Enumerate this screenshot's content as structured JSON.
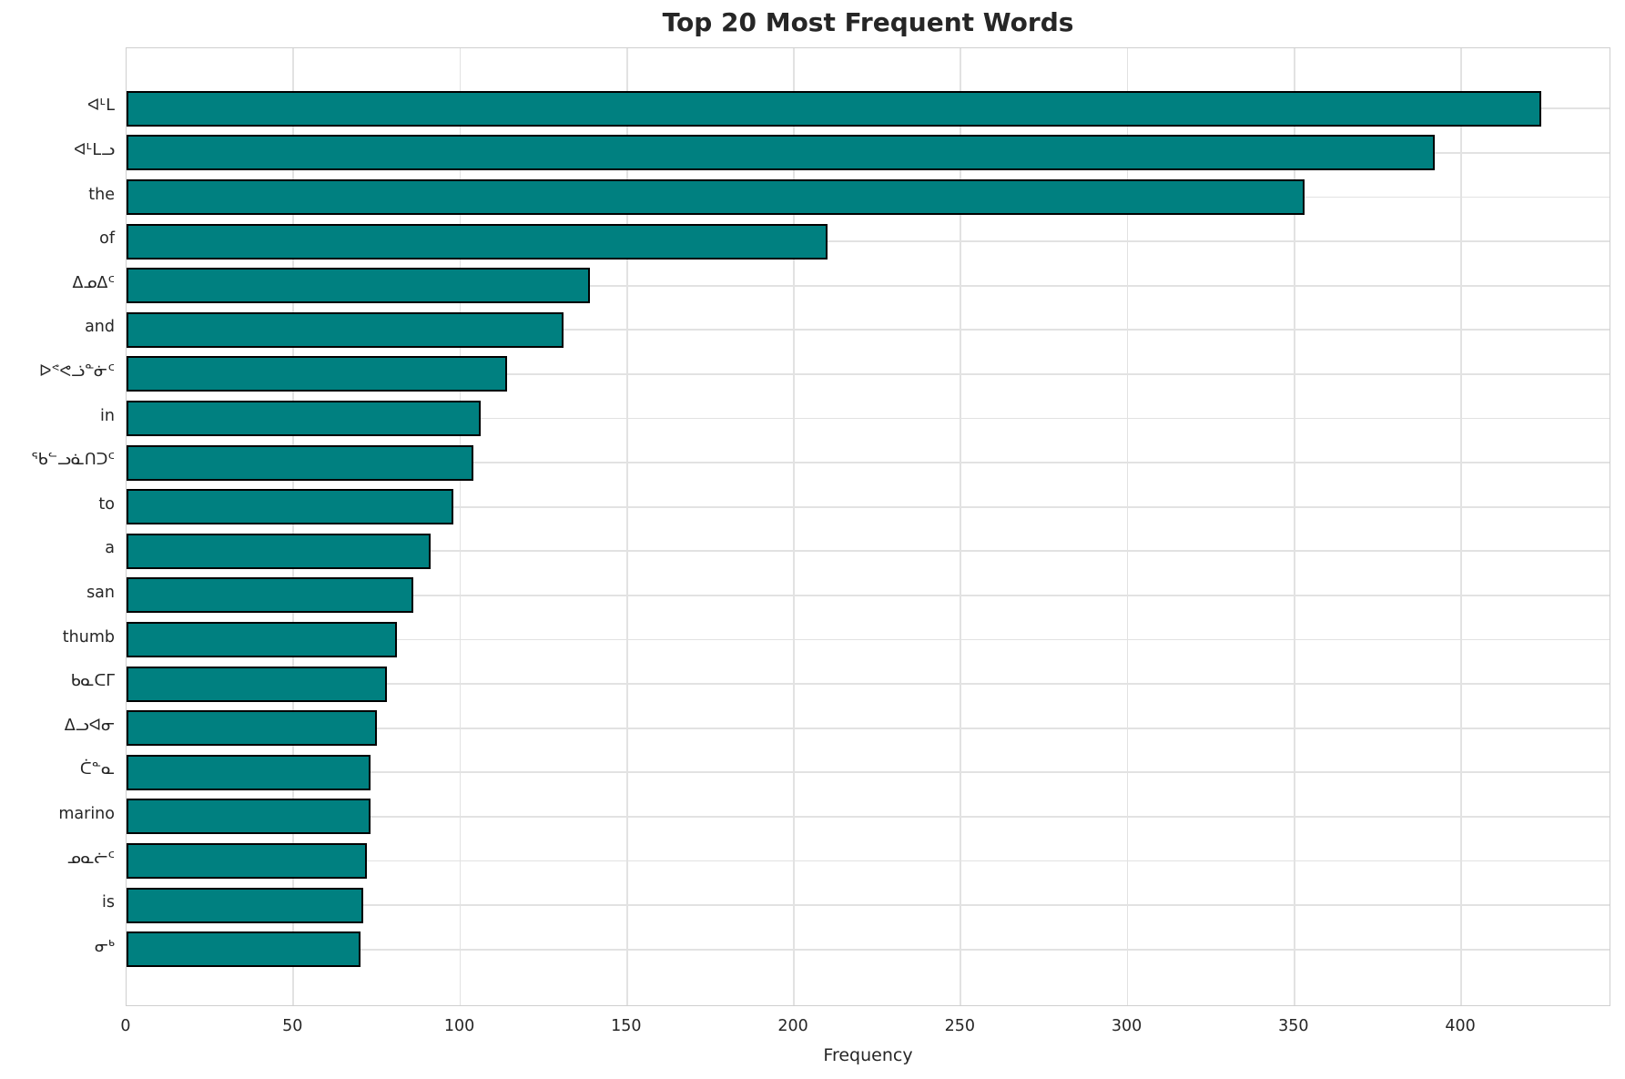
{
  "title": "Top 20 Most Frequent Words",
  "xlabel": "Frequency",
  "colors": {
    "bar_fill": "#008080",
    "bar_edge": "#000000",
    "grid": "#e2e2e2",
    "spine": "#cfcfcf",
    "text": "#262626"
  },
  "chart_data": {
    "type": "bar",
    "orientation": "horizontal",
    "title": "Top 20 Most Frequent Words",
    "xlabel": "Frequency",
    "ylabel": "",
    "grid": true,
    "legend": false,
    "xlim": [
      0,
      445
    ],
    "xticks": [
      0,
      50,
      100,
      150,
      200,
      250,
      300,
      350,
      400
    ],
    "categories": [
      "ᐊᒻᒪ",
      "ᐊᒻᒪᓗ",
      "the",
      "of",
      "ᐃᓄᐃᑦ",
      "and",
      "ᐅᕝᕙᓘᓐᓃᑦ",
      "in",
      "ᖃᓪᓗᓈᑎᑐᑦ",
      "to",
      "a",
      "san",
      "thumb",
      "ᑲᓇᑕᒥ",
      "ᐃᓗᐊᓂ",
      "ᑖᓐᓇ",
      "marino",
      "ᓄᓇᓖᑦ",
      "is",
      "ᓂᒃ"
    ],
    "values": [
      424,
      392,
      353,
      210,
      139,
      131,
      114,
      106,
      104,
      98,
      91,
      86,
      81,
      78,
      75,
      73,
      73,
      72,
      71,
      70
    ]
  }
}
